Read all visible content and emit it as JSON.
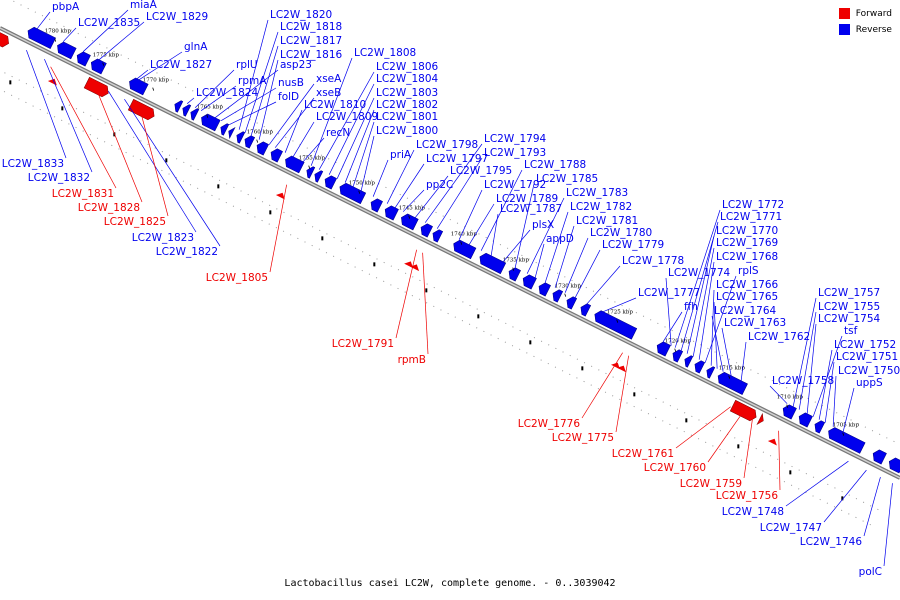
{
  "legend": [
    {
      "label": "Forward",
      "color": "#ee0000"
    },
    {
      "label": "Reverse",
      "color": "#0000ee"
    }
  ],
  "caption": "Lactobacillus casei LC2W, complete genome. - 0..3039042",
  "colors": {
    "forward": "#ee0000",
    "reverse": "#0000ee",
    "backbone": "#888888"
  },
  "ticks": [
    "1780 kbp",
    "1775 kbp",
    "1770 kbp",
    "1765 kbp",
    "1760 kbp",
    "1755 kbp",
    "1750 kbp",
    "1745 kbp",
    "1740 kbp",
    "1735 kbp",
    "1730 kbp",
    "1725 kbp",
    "1720 kbp",
    "1715 kbp",
    "1710 kbp",
    "1705 kbp"
  ],
  "reverse_labels_top": [
    "pbpA",
    "LC2W_1835",
    "miaA",
    "LC2W_1829",
    "glnA",
    "LC2W_1827",
    "LC2W_1824",
    "rplU",
    "rpmA",
    "asp23",
    "nusB",
    "folD",
    "LC2W_1820",
    "LC2W_1818",
    "LC2W_1817",
    "LC2W_1816",
    "xseA",
    "xseB",
    "LC2W_1810",
    "LC2W_1809",
    "recN",
    "LC2W_1808",
    "LC2W_1806",
    "LC2W_1804",
    "LC2W_1803",
    "LC2W_1802",
    "LC2W_1801",
    "LC2W_1800",
    "priA",
    "LC2W_1798",
    "LC2W_1797",
    "pp2C",
    "LC2W_1795",
    "LC2W_1794",
    "LC2W_1793",
    "LC2W_1792",
    "LC2W_1789",
    "LC2W_1788",
    "LC2W_1787",
    "plsX",
    "LC2W_1785",
    "LC2W_1783",
    "appD",
    "LC2W_1782",
    "LC2W_1781",
    "LC2W_1780",
    "LC2W_1779",
    "LC2W_1778",
    "LC2W_1777",
    "ffh",
    "LC2W_1774",
    "LC2W_1772",
    "LC2W_1771",
    "LC2W_1770",
    "LC2W_1769",
    "LC2W_1768",
    "rplS",
    "LC2W_1766",
    "LC2W_1765",
    "LC2W_1764",
    "LC2W_1763",
    "LC2W_1762",
    "LC2W_1758",
    "LC2W_1757",
    "LC2W_1755",
    "LC2W_1754",
    "tsf",
    "LC2W_1752",
    "LC2W_1751",
    "LC2W_1750",
    "uppS"
  ],
  "reverse_labels_bottom": [
    "LC2W_1833",
    "LC2W_1832",
    "LC2W_1823",
    "LC2W_1822",
    "LC2W_1748",
    "LC2W_1747",
    "LC2W_1746",
    "polC"
  ],
  "forward_labels": [
    "LC2W_1831",
    "LC2W_1828",
    "LC2W_1825",
    "LC2W_1805",
    "LC2W_1791",
    "rpmB",
    "LC2W_1776",
    "LC2W_1775",
    "LC2W_1761",
    "LC2W_1760",
    "LC2W_1759",
    "LC2W_1756"
  ]
}
